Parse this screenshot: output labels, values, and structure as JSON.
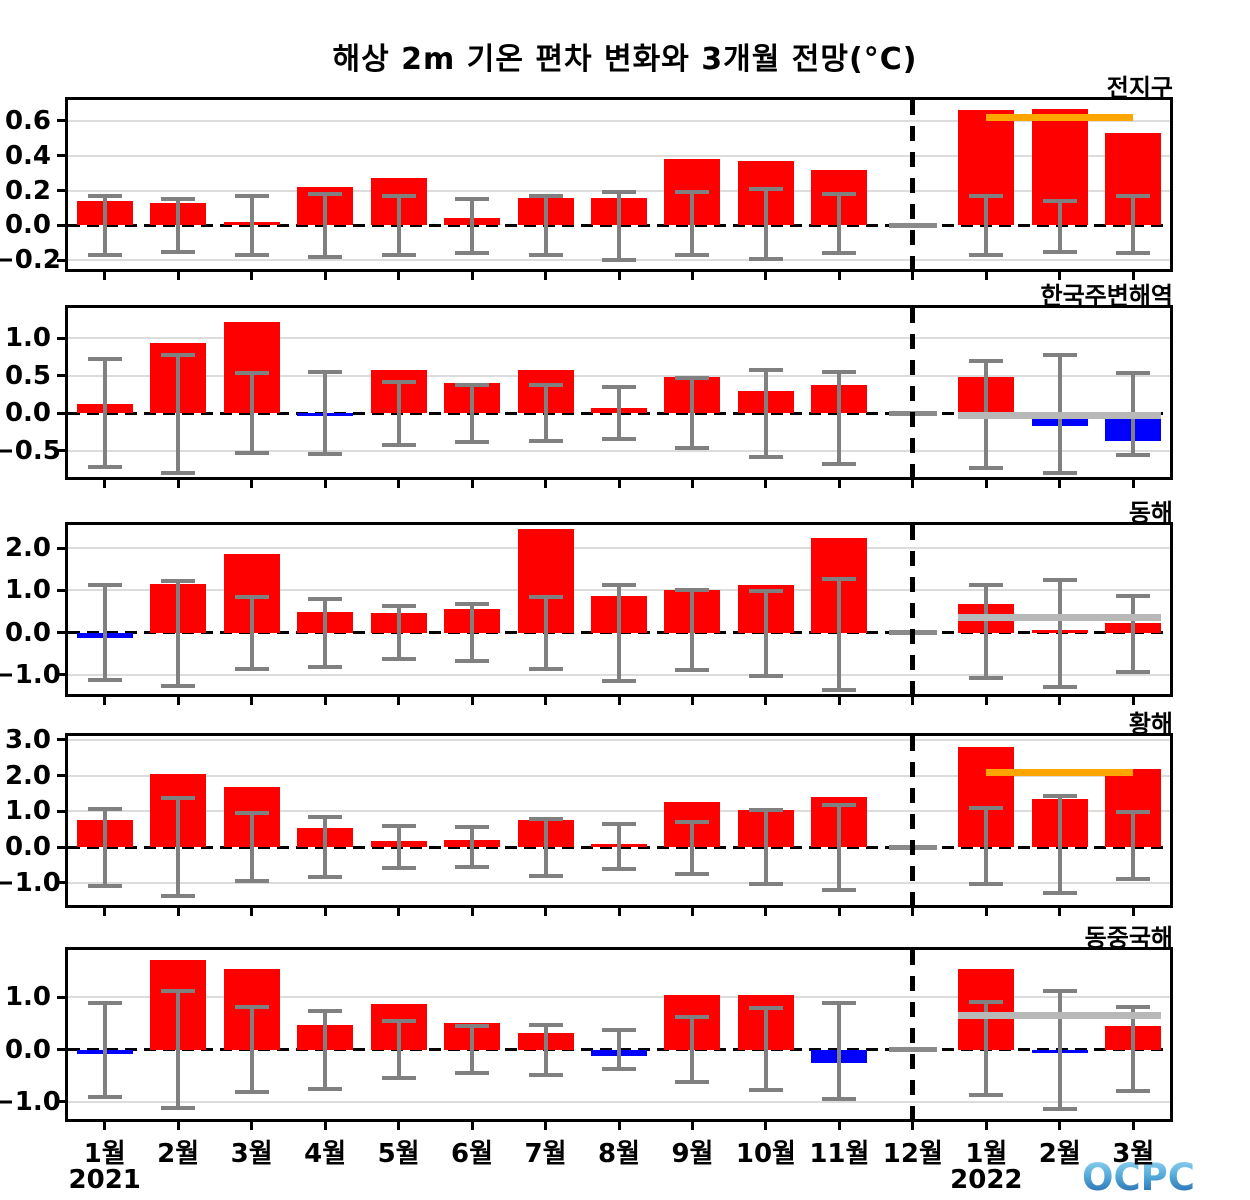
{
  "title": "해상 2m 기온 편차 변화와 3개월 전망(°C)",
  "logo_text": "OCPC",
  "colors": {
    "positive_bar": "#ff0000",
    "negative_bar": "#0000ff",
    "error_bar": "#808080",
    "december_marker": "#8a8a8a",
    "forecast_orange": "#ffa500",
    "forecast_gray": "#b8b8b8",
    "grid": "#dcdcdc",
    "frame": "#000000"
  },
  "x_axis": {
    "labels": [
      "1월",
      "2월",
      "3월",
      "4월",
      "5월",
      "6월",
      "7월",
      "8월",
      "9월",
      "10월",
      "11월",
      "12월",
      "1월",
      "2월",
      "3월"
    ],
    "year_left": {
      "label": "2021",
      "index": 0
    },
    "year_right": {
      "label": "2022",
      "index": 12
    },
    "divider_index": 11,
    "forecast_note": "dashed line separates 2021 observations from Jan-Mar 2022 forecast"
  },
  "chart_data": [
    {
      "type": "bar",
      "id": "global",
      "title": "전지구",
      "ylim": [
        -0.25,
        0.72
      ],
      "yticks": [
        0.6,
        0.4,
        0.2,
        0.0,
        -0.2
      ],
      "ytick_labels": [
        "0.6",
        "0.4",
        "0.2",
        "0.0",
        "−0.2"
      ],
      "values": [
        0.14,
        0.13,
        0.01,
        0.22,
        0.27,
        0.04,
        0.16,
        0.16,
        0.38,
        0.37,
        0.32,
        null,
        0.66,
        0.67,
        0.53
      ],
      "err_hi": [
        0.17,
        0.15,
        0.17,
        0.18,
        0.17,
        0.15,
        0.17,
        0.19,
        0.19,
        0.21,
        0.18,
        null,
        0.17,
        0.14,
        0.17
      ],
      "err_lo": [
        -0.17,
        -0.15,
        -0.17,
        -0.18,
        -0.17,
        -0.16,
        -0.17,
        -0.2,
        -0.17,
        -0.19,
        -0.16,
        null,
        -0.17,
        -0.15,
        -0.16
      ],
      "forecast_line": {
        "value": 0.62,
        "color": "orange",
        "span": [
          12,
          14
        ]
      }
    },
    {
      "type": "bar",
      "id": "korea-seas",
      "title": "한국주변해역",
      "ylim": [
        -0.85,
        1.4
      ],
      "yticks": [
        1.0,
        0.5,
        0.0,
        -0.5
      ],
      "ytick_labels": [
        "1.0",
        "0.5",
        "0.0",
        "−0.5"
      ],
      "values": [
        0.12,
        0.93,
        1.22,
        -0.01,
        0.58,
        0.4,
        0.57,
        0.07,
        0.48,
        0.3,
        0.38,
        null,
        0.48,
        -0.17,
        -0.37
      ],
      "err_hi": [
        0.72,
        0.78,
        0.54,
        0.55,
        0.42,
        0.38,
        0.37,
        0.35,
        0.47,
        0.58,
        0.55,
        null,
        0.7,
        0.77,
        0.53
      ],
      "err_lo": [
        -0.72,
        -0.8,
        -0.53,
        -0.55,
        -0.42,
        -0.39,
        -0.37,
        -0.35,
        -0.47,
        -0.58,
        -0.68,
        null,
        -0.73,
        -0.8,
        -0.56
      ],
      "forecast_line": {
        "value": -0.03,
        "color": "gray",
        "span": [
          12,
          14
        ]
      }
    },
    {
      "type": "bar",
      "id": "east-sea",
      "title": "동해",
      "ylim": [
        -1.45,
        2.55
      ],
      "yticks": [
        2.0,
        1.0,
        0.0,
        -1.0
      ],
      "ytick_labels": [
        "2.0",
        "1.0",
        "0.0",
        "−1.0"
      ],
      "values": [
        -0.13,
        1.15,
        1.87,
        0.48,
        0.46,
        0.57,
        2.45,
        0.88,
        1.0,
        1.13,
        2.25,
        null,
        0.68,
        0.05,
        0.22
      ],
      "err_hi": [
        1.13,
        1.23,
        0.84,
        0.8,
        0.63,
        0.68,
        0.85,
        1.12,
        1.02,
        0.98,
        1.28,
        null,
        1.12,
        1.25,
        0.88
      ],
      "err_lo": [
        -1.12,
        -1.27,
        -0.85,
        -0.8,
        -0.63,
        -0.68,
        -0.87,
        -1.15,
        -0.88,
        -1.02,
        -1.35,
        null,
        -1.07,
        -1.28,
        -0.92
      ],
      "forecast_line": {
        "value": 0.35,
        "color": "gray",
        "span": [
          12,
          14
        ]
      }
    },
    {
      "type": "bar",
      "id": "yellow-sea",
      "title": "황해",
      "ylim": [
        -1.62,
        3.11
      ],
      "yticks": [
        3.0,
        2.0,
        1.0,
        0.0,
        -1.0
      ],
      "ytick_labels": [
        "3.0",
        "2.0",
        "1.0",
        "0.0",
        "−1.0"
      ],
      "values": [
        0.77,
        2.05,
        1.67,
        0.53,
        0.18,
        0.21,
        0.76,
        0.01,
        1.25,
        1.05,
        1.4,
        null,
        2.8,
        1.35,
        2.18
      ],
      "err_hi": [
        1.08,
        1.37,
        0.95,
        0.85,
        0.58,
        0.55,
        0.8,
        0.65,
        0.7,
        1.03,
        1.18,
        null,
        1.1,
        1.42,
        0.98
      ],
      "err_lo": [
        -1.08,
        -1.38,
        -0.95,
        -0.85,
        -0.58,
        -0.55,
        -0.8,
        -0.62,
        -0.74,
        -1.02,
        -1.2,
        null,
        -1.02,
        -1.28,
        -0.9
      ],
      "forecast_line": {
        "value": 2.1,
        "color": "orange",
        "span": [
          12,
          14
        ]
      }
    },
    {
      "type": "bar",
      "id": "east-china-sea",
      "title": "동중국해",
      "ylim": [
        -1.33,
        1.91
      ],
      "yticks": [
        1.0,
        0.0,
        -1.0
      ],
      "ytick_labels": [
        "1.0",
        "0.0",
        "−1.0"
      ],
      "values": [
        -0.08,
        1.72,
        1.55,
        0.48,
        0.88,
        0.52,
        0.32,
        -0.13,
        1.05,
        1.05,
        -0.25,
        null,
        1.55,
        -0.02,
        0.45
      ],
      "err_hi": [
        0.9,
        1.12,
        0.82,
        0.75,
        0.55,
        0.45,
        0.48,
        0.38,
        0.62,
        0.8,
        0.9,
        null,
        0.92,
        1.12,
        0.82
      ],
      "err_lo": [
        -0.9,
        -1.12,
        -0.82,
        -0.75,
        -0.55,
        -0.45,
        -0.48,
        -0.38,
        -0.62,
        -0.78,
        -0.95,
        null,
        -0.87,
        -1.13,
        -0.8
      ],
      "forecast_line": {
        "value": 0.65,
        "color": "gray",
        "span": [
          12,
          14
        ]
      }
    }
  ]
}
